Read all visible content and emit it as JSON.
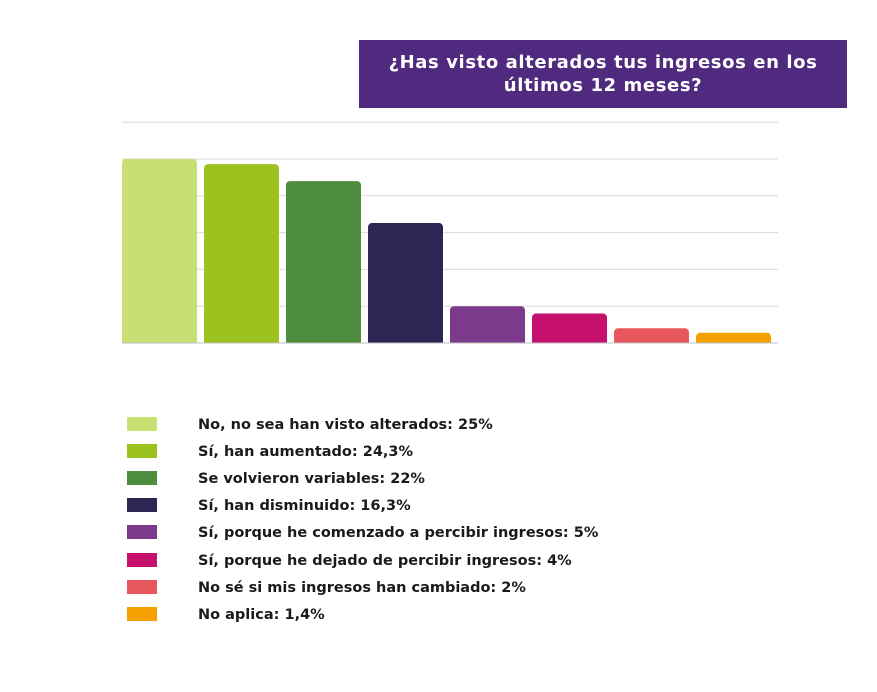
{
  "colors": {
    "title_bg": "#4f2a7e",
    "title_fg": "#ffffff",
    "grid": "#d9d9d9",
    "axis": "#bfbfbf"
  },
  "chart_data": {
    "type": "bar",
    "title": "¿Has visto alterados tus ingresos en los\núltimos 12 meses?",
    "categories": [
      "No, no sea han visto alterados",
      "Sí, han aumentado",
      "Se volvieron variables",
      "Sí, han disminuido",
      "Sí, porque he comenzado a percibir ingresos",
      "Sí, porque he dejado de percibir ingresos",
      "No sé si mis ingresos han cambiado",
      "No aplica"
    ],
    "values": [
      25,
      24.3,
      22,
      16.3,
      5,
      4,
      2,
      1.4
    ],
    "colors": [
      "#c8df74",
      "#9cc21f",
      "#4e8c3e",
      "#2b2654",
      "#7d3a8c",
      "#c5116d",
      "#e8575d",
      "#f4a100"
    ],
    "ylim": [
      0,
      30
    ],
    "grid": true,
    "legend_position": "bottom",
    "legend": [
      "No, no sea han visto alterados: 25%",
      "Sí, han aumentado: 24,3%",
      "Se volvieron variables: 22%",
      "Sí, han disminuido: 16,3%",
      "Sí, porque he comenzado a percibir ingresos: 5%",
      "Sí, porque he dejado de percibir ingresos: 4%",
      "No sé si mis ingresos han cambiado: 2%",
      "No aplica: 1,4%"
    ]
  }
}
